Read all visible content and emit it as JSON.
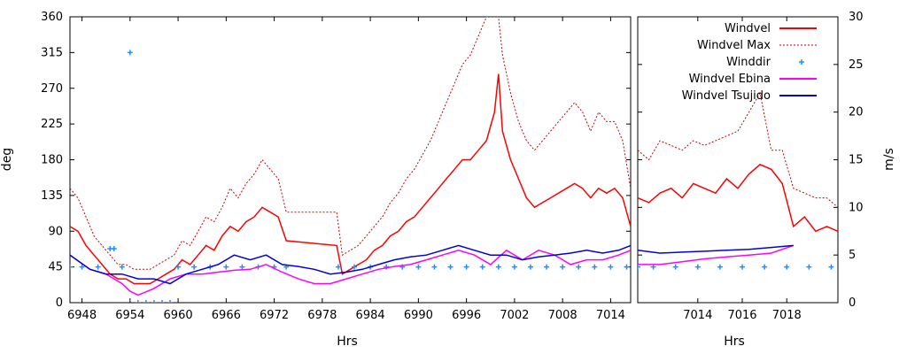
{
  "colors": {
    "windvel": "#ff0000",
    "windvel_max": "#cc0000",
    "winddir": "#1e90ff",
    "ebina": "#ff00ff",
    "tsujido": "#0000dd"
  },
  "chart_data": [
    {
      "type": "line",
      "panel": "left",
      "xlabel": "Hrs",
      "ylabel": "deg",
      "xlim": [
        6946.5,
        7016.5
      ],
      "ylim": [
        0,
        360
      ],
      "x_ticks": [
        "6948",
        "6954",
        "6960",
        "6966",
        "6972",
        "6978",
        "6984",
        "6990",
        "6996",
        "7002",
        "7008",
        "7014"
      ],
      "y_ticks": [
        "0",
        "45",
        "90",
        "135",
        "180",
        "225",
        "270",
        "315",
        "360"
      ],
      "grid": false,
      "series": [
        {
          "name": "Windvel",
          "axis": "right",
          "x": [
            6946.5,
            6947.5,
            6948.5,
            6949.5,
            6950.5,
            6951.5,
            6952.5,
            6953.5,
            6954.5,
            6955.5,
            6956.5,
            6957.5,
            6958.5,
            6959.5,
            6960.5,
            6961.5,
            6962.5,
            6963.5,
            6964.5,
            6965.5,
            6966.5,
            6967.5,
            6968.5,
            6969.5,
            6970.5,
            6971.5,
            6972.5,
            6973.5,
            6979.8,
            6980.5,
            6981.5,
            6982.5,
            6983.5,
            6984.5,
            6985.5,
            6986.5,
            6987.5,
            6988.5,
            6989.5,
            6990.5,
            6991.5,
            6992.5,
            6993.5,
            6994.5,
            6995.5,
            6996.5,
            6997.5,
            6998.5,
            6999.5,
            7000.0,
            7000.5,
            7001.5,
            7002.5,
            7003.5,
            7004.5,
            7005.5,
            7006.5,
            7007.5,
            7008.5,
            7009.5,
            7010.5,
            7011.5,
            7012.5,
            7013.5,
            7014.5,
            7015.5,
            7016.5
          ],
          "values": [
            8,
            7.5,
            6,
            5,
            4,
            3,
            2.5,
            2.5,
            2,
            2,
            2,
            2.5,
            3,
            3.5,
            4.5,
            4,
            5,
            6,
            5.5,
            7,
            8,
            7.5,
            8.5,
            9,
            10,
            9.5,
            9,
            6.5,
            6,
            3,
            3.5,
            4,
            4.5,
            5.5,
            6,
            7,
            7.5,
            8.5,
            9,
            10,
            11,
            12,
            13,
            14,
            15,
            15,
            16,
            17,
            20,
            24,
            18,
            15,
            13,
            11,
            10,
            10.5,
            11,
            11.5,
            12,
            12.5,
            12,
            11,
            12,
            11.5,
            12,
            11,
            8
          ]
        },
        {
          "name": "Windvel Max",
          "axis": "right",
          "x": [
            6946.5,
            6947.5,
            6948.5,
            6949.5,
            6950.5,
            6951.5,
            6952.5,
            6953.5,
            6954.5,
            6955.5,
            6956.5,
            6957.5,
            6958.5,
            6959.5,
            6960.5,
            6961.5,
            6962.5,
            6963.5,
            6964.5,
            6965.5,
            6966.5,
            6967.5,
            6968.5,
            6969.5,
            6970.5,
            6971.5,
            6972.5,
            6973.5,
            6979.8,
            6980.5,
            6981.5,
            6982.5,
            6983.5,
            6984.5,
            6985.5,
            6986.5,
            6987.5,
            6988.5,
            6989.5,
            6990.5,
            6991.5,
            6992.5,
            6993.5,
            6994.5,
            6995.5,
            6996.5,
            6997.5,
            6998.5,
            6999.5,
            7000.0,
            7000.5,
            7001.5,
            7002.5,
            7003.5,
            7004.5,
            7005.5,
            7006.5,
            7007.5,
            7008.5,
            7009.5,
            7010.5,
            7011.5,
            7012.5,
            7013.5,
            7014.5,
            7015.5,
            7016.5
          ],
          "values": [
            12,
            11,
            9,
            7,
            6,
            5,
            4,
            4,
            3.5,
            3.5,
            3.5,
            4,
            4.5,
            5,
            6.5,
            6,
            7.5,
            9,
            8.5,
            10,
            12,
            11,
            12.5,
            13.5,
            15,
            14,
            13,
            9.5,
            9.5,
            5,
            5.5,
            6,
            7,
            8,
            9,
            10.5,
            11.5,
            13,
            14,
            15.5,
            17,
            19,
            21,
            23,
            25,
            26,
            28,
            30,
            30,
            30,
            26,
            22,
            19,
            17,
            16,
            17,
            18,
            19,
            20,
            21,
            20,
            18,
            20,
            19,
            19,
            17,
            12
          ]
        },
        {
          "name": "Winddir",
          "axis": "left",
          "style": "points",
          "x": [
            6946.5,
            6948,
            6950,
            6951.5,
            6952,
            6953,
            6954,
            6955,
            6956,
            6957,
            6958,
            6959,
            6960,
            6962,
            6964,
            6966,
            6968,
            6970,
            6972,
            6973.5,
            6980,
            6982,
            6984,
            6986,
            6988,
            6990,
            6992,
            6994,
            6996,
            6998,
            7000,
            7002,
            7004,
            7006,
            7008,
            7010,
            7012,
            7014,
            7016
          ],
          "values": [
            45,
            45,
            45,
            68,
            68,
            45,
            315,
            0,
            0,
            0,
            0,
            0,
            45,
            45,
            45,
            45,
            45,
            45,
            45,
            45,
            45,
            45,
            45,
            45,
            45,
            45,
            45,
            45,
            45,
            45,
            45,
            45,
            45,
            45,
            45,
            45,
            45,
            45,
            45
          ]
        },
        {
          "name": "Windvel Ebina",
          "axis": "right",
          "x": [
            6946.5,
            6949,
            6951,
            6953,
            6954,
            6955,
            6957,
            6959,
            6961,
            6963,
            6965,
            6967,
            6969,
            6971,
            6973,
            6975,
            6977,
            6979,
            6981,
            6983,
            6985,
            6987,
            6989,
            6991,
            6993,
            6995,
            6997,
            6999,
            7001,
            7003,
            7005,
            7007,
            7009,
            7011,
            7013,
            7015,
            7016.5
          ],
          "values": [
            5,
            3.5,
            3,
            2,
            1.2,
            0.8,
            1.5,
            2.5,
            3,
            3,
            3.2,
            3.4,
            3.5,
            4,
            3.2,
            2.5,
            2,
            2,
            2.5,
            3,
            3.5,
            3.8,
            4,
            4.5,
            5,
            5.5,
            5,
            4,
            5.5,
            4.5,
            5.5,
            5,
            4,
            4.5,
            4.5,
            5,
            5.5
          ]
        },
        {
          "name": "Windvel Tsujido",
          "axis": "right",
          "x": [
            6946.5,
            6949,
            6951,
            6953,
            6955,
            6957,
            6959,
            6961,
            6963,
            6965,
            6967,
            6969,
            6971,
            6973,
            6975,
            6977,
            6979,
            6981,
            6983,
            6985,
            6987,
            6989,
            6991,
            6993,
            6995,
            6997,
            6999,
            7001,
            7003,
            7005,
            7007,
            7009,
            7011,
            7013,
            7015,
            7016.5
          ],
          "values": [
            5,
            3.5,
            3,
            3,
            2.5,
            2.5,
            2,
            3,
            3.5,
            4,
            5,
            4.5,
            5,
            4,
            3.8,
            3.5,
            3,
            3.2,
            3.5,
            4,
            4.5,
            4.8,
            5,
            5.5,
            6,
            5.5,
            5,
            5,
            4.5,
            4.8,
            5,
            5.2,
            5.5,
            5.2,
            5.5,
            6
          ]
        }
      ]
    },
    {
      "type": "line",
      "panel": "right",
      "xlabel": "Hrs",
      "ylabel": "m/s",
      "xlim": [
        7011.3,
        7020.3
      ],
      "ylim": [
        0,
        30
      ],
      "x_ticks": [
        "7014",
        "7016",
        "7018"
      ],
      "y_ticks": [
        "0",
        "5",
        "10",
        "15",
        "20",
        "25",
        "30"
      ],
      "grid": false,
      "series": [
        {
          "name": "Windvel",
          "axis": "right",
          "x": [
            7011.3,
            7011.8,
            7012.3,
            7012.8,
            7013.3,
            7013.8,
            7014.3,
            7014.8,
            7015.3,
            7015.8,
            7016.3,
            7016.8,
            7017.3,
            7017.8,
            7018.3,
            7018.8,
            7019.3,
            7019.8,
            7020.3
          ],
          "values": [
            11,
            10.5,
            11.5,
            12,
            11,
            12.5,
            12,
            11.5,
            13,
            12,
            13.5,
            14.5,
            14,
            12.5,
            8,
            9,
            7.5,
            8,
            7.5
          ]
        },
        {
          "name": "Windvel Max",
          "axis": "right",
          "x": [
            7011.3,
            7011.8,
            7012.3,
            7012.8,
            7013.3,
            7013.8,
            7014.3,
            7014.8,
            7015.3,
            7015.8,
            7016.3,
            7016.8,
            7017.3,
            7017.8,
            7018.3,
            7018.8,
            7019.3,
            7019.8,
            7020.3
          ],
          "values": [
            16,
            15,
            17,
            16.5,
            16,
            17,
            16.5,
            17,
            17.5,
            18,
            20,
            22,
            16,
            16,
            12,
            11.5,
            11,
            11,
            10
          ]
        },
        {
          "name": "Winddir",
          "axis": "left",
          "style": "points",
          "x": [
            7011.3,
            7012,
            7013,
            7014,
            7015,
            7016,
            7017,
            7018,
            7019,
            7020
          ],
          "values": [
            45,
            45,
            45,
            45,
            45,
            45,
            45,
            45,
            45,
            45
          ]
        },
        {
          "name": "Windvel Ebina",
          "axis": "right",
          "x": [
            7011.3,
            7012.3,
            7013.3,
            7014.3,
            7015.3,
            7016.3,
            7017.3,
            7018.3
          ],
          "values": [
            4,
            4,
            4.3,
            4.6,
            4.8,
            5,
            5.2,
            6
          ]
        },
        {
          "name": "Windvel Tsujido",
          "axis": "right",
          "x": [
            7011.3,
            7012.3,
            7013.3,
            7014.3,
            7015.3,
            7016.3,
            7017.3,
            7018.3
          ],
          "values": [
            5.5,
            5.2,
            5.3,
            5.4,
            5.5,
            5.6,
            5.8,
            6
          ]
        }
      ]
    }
  ]
}
